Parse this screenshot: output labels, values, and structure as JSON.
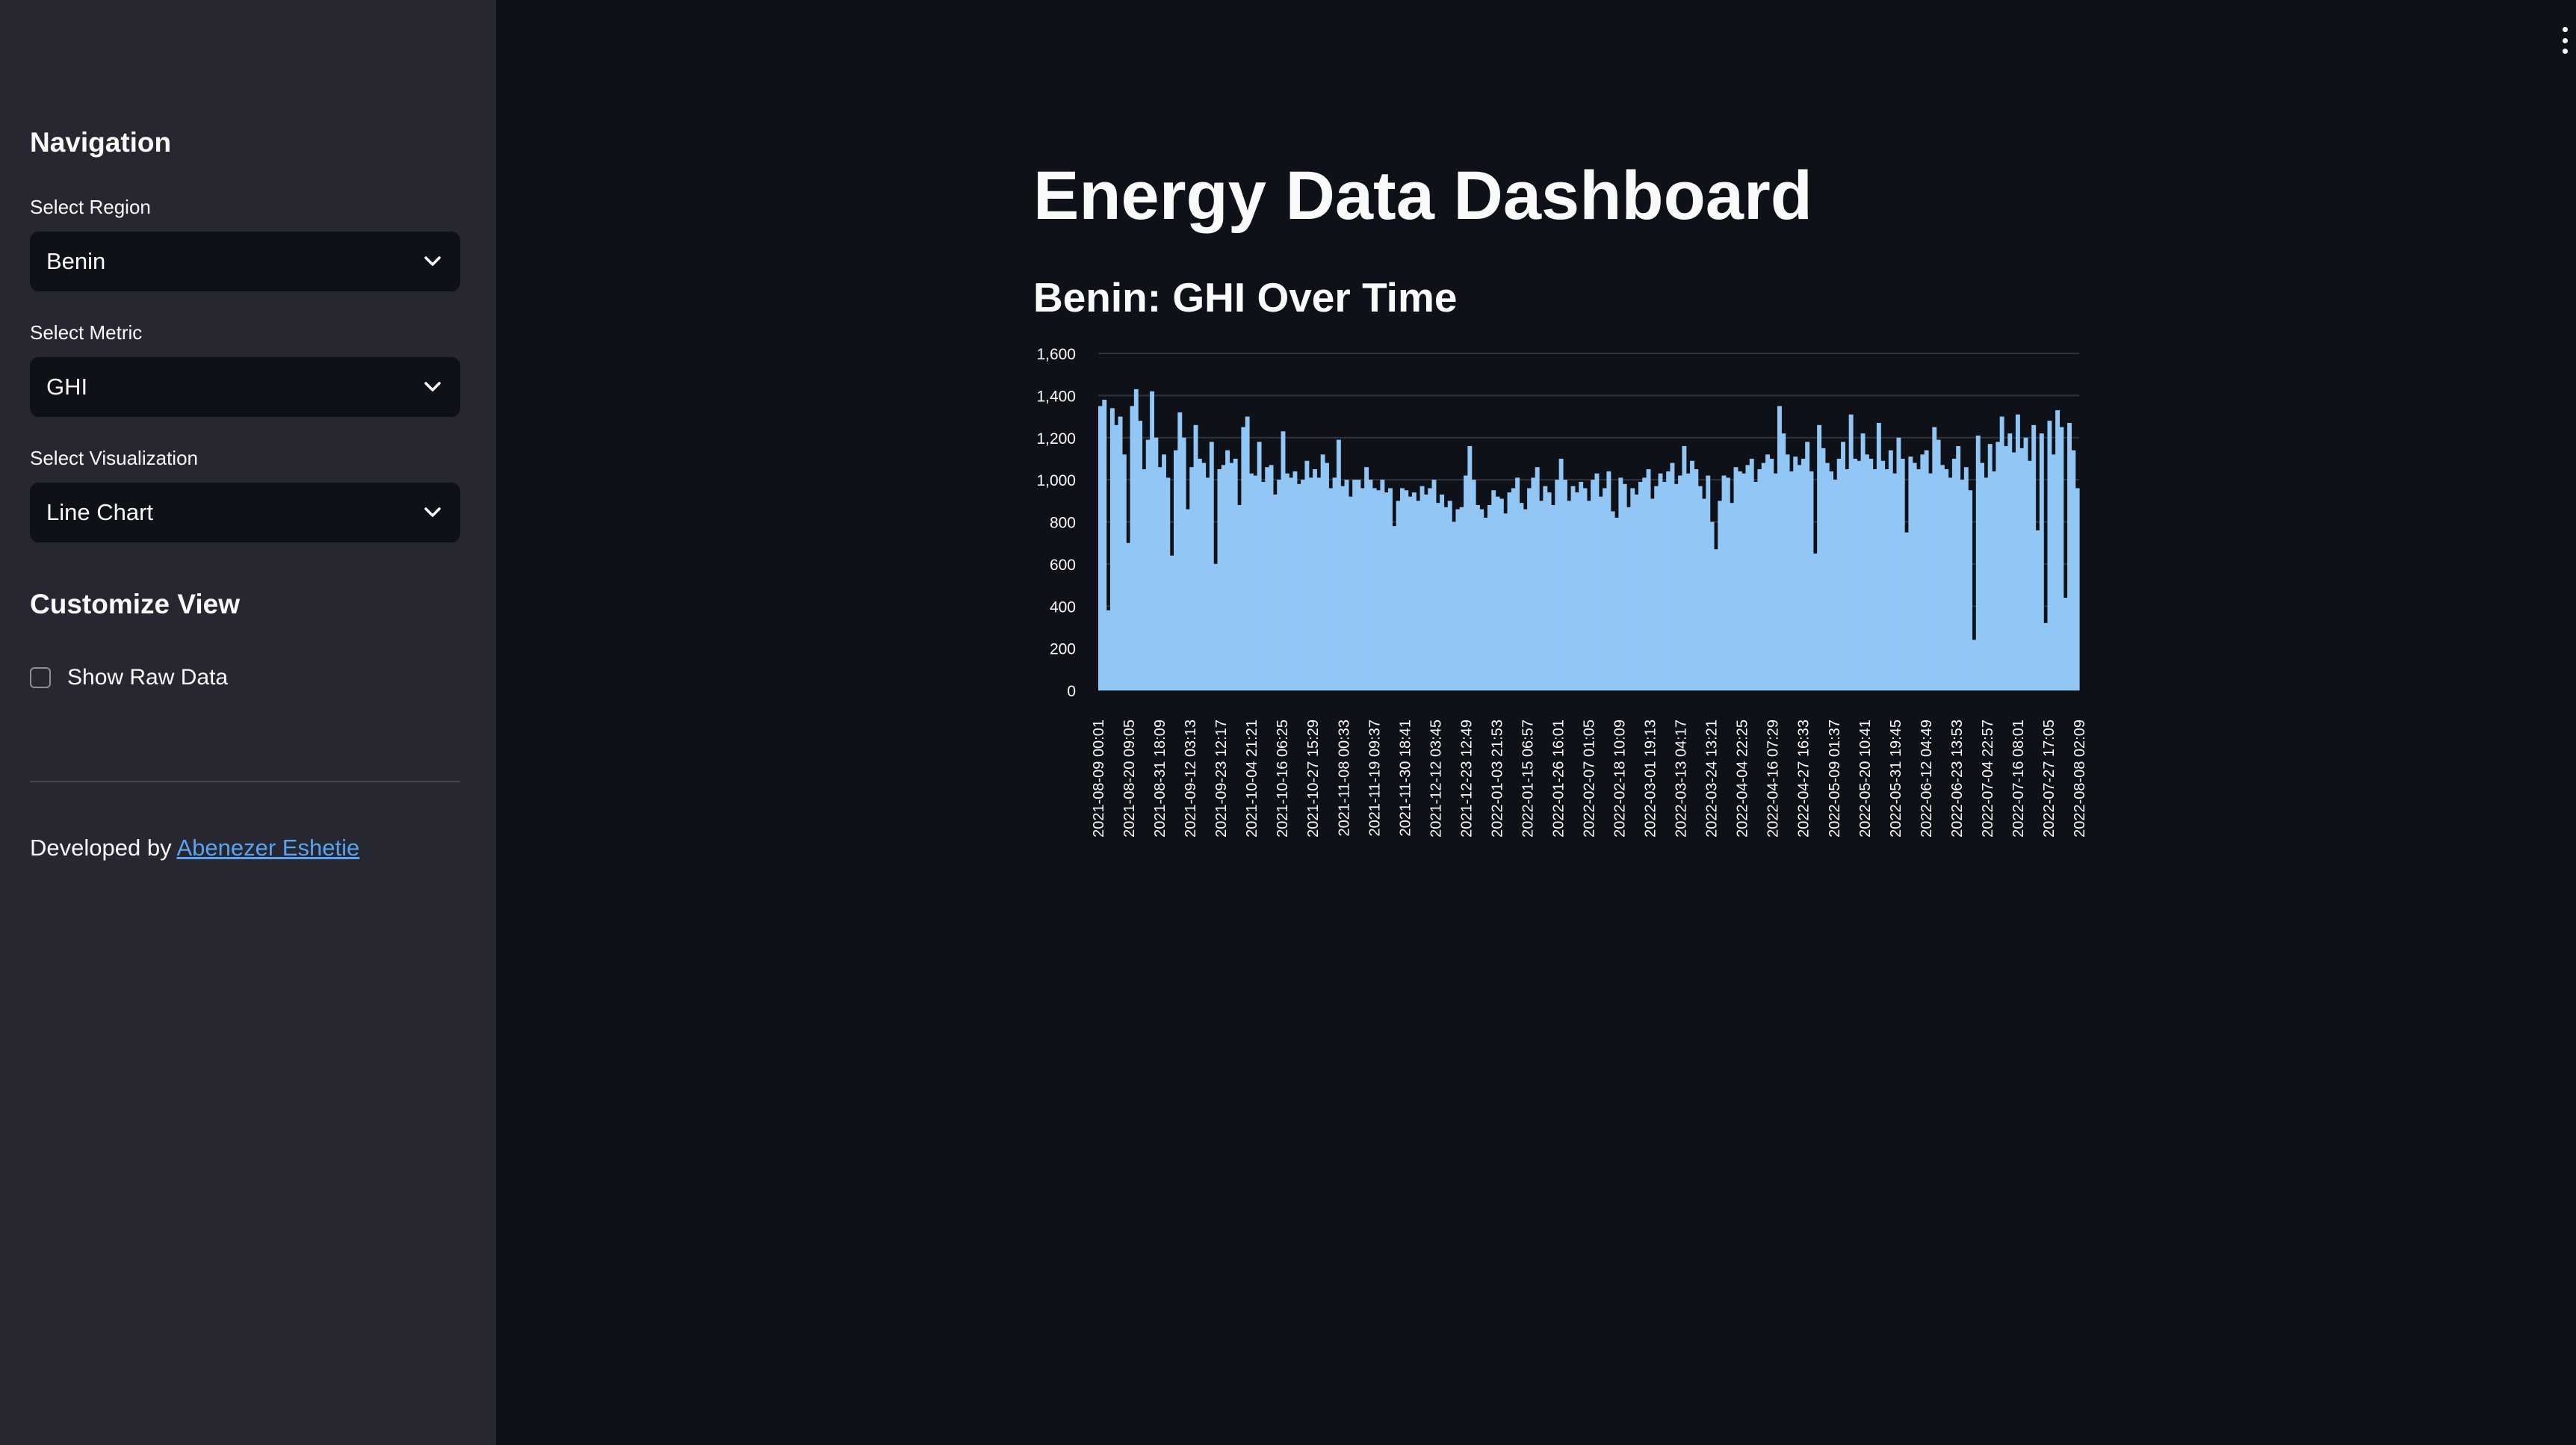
{
  "sidebar": {
    "nav_title": "Navigation",
    "region": {
      "label": "Select Region",
      "value": "Benin"
    },
    "metric": {
      "label": "Select Metric",
      "value": "GHI"
    },
    "visualization": {
      "label": "Select Visualization",
      "value": "Line Chart"
    },
    "customize_title": "Customize View",
    "raw_data_checkbox": {
      "label": "Show Raw Data",
      "checked": false
    },
    "footer": {
      "prefix": "Developed by",
      "link_text": "Abenezer Eshetie"
    },
    "icons": {
      "dropdown": "chevron-down-icon",
      "menu": "vertical-dots-icon"
    }
  },
  "main": {
    "title": "Energy Data Dashboard",
    "chart_title": "Benin: GHI Over Time"
  },
  "colors": {
    "app_background": "#0e1117",
    "sidebar_background": "#262730",
    "bar_fill": "#91c6f5",
    "link": "#5aa3f0"
  },
  "chart_data": {
    "type": "area",
    "title": "Benin: GHI Over Time",
    "xlabel": "",
    "ylabel": "",
    "ylim": [
      0,
      1600
    ],
    "y_ticks": [
      "0",
      "200",
      "400",
      "600",
      "800",
      "1,000",
      "1,200",
      "1,400",
      "1,600"
    ],
    "grid": true,
    "x_tick_labels": [
      "2021-08-09 00:01",
      "2021-08-20 09:05",
      "2021-08-31 18:09",
      "2021-09-12 03:13",
      "2021-09-23 12:17",
      "2021-10-04 21:21",
      "2021-10-16 06:25",
      "2021-10-27 15:29",
      "2021-11-08 00:33",
      "2021-11-19 09:37",
      "2021-11-30 18:41",
      "2021-12-12 03:45",
      "2021-12-23 12:49",
      "2022-01-03 21:53",
      "2022-01-15 06:57",
      "2022-01-26 16:01",
      "2022-02-07 01:05",
      "2022-02-18 10:09",
      "2022-03-01 19:13",
      "2022-03-13 04:17",
      "2022-03-24 13:21",
      "2022-04-04 22:25",
      "2022-04-16 07:29",
      "2022-04-27 16:33",
      "2022-05-09 01:37",
      "2022-05-20 10:41",
      "2022-05-31 19:45",
      "2022-06-12 04:49",
      "2022-06-23 13:53",
      "2022-07-04 22:57",
      "2022-07-16 08:01",
      "2022-07-27 17:05",
      "2022-08-08 02:09"
    ],
    "series": [
      {
        "values": [
          1350,
          1380,
          380,
          1340,
          1260,
          1300,
          1120,
          700,
          1350,
          1430,
          1280,
          1050,
          1190,
          1420,
          1200,
          1060,
          1120,
          1010,
          640,
          1140,
          1320,
          1200,
          860,
          1060,
          1260,
          1100,
          1080,
          1010,
          1180,
          600,
          1050,
          1070,
          1140,
          1080,
          1100,
          880,
          1250,
          1300,
          1030,
          1020,
          1180,
          990,
          1060,
          1070,
          930,
          1000,
          1230,
          1030,
          1010,
          1040,
          980,
          1000,
          1090,
          1010,
          1050,
          1010,
          1120,
          1080,
          960,
          1010,
          1190,
          970,
          1000,
          920,
          1000,
          1000,
          960,
          1060,
          1000,
          960,
          950,
          1000,
          940,
          960,
          780,
          900,
          960,
          950,
          920,
          940,
          900,
          970,
          930,
          960,
          1000,
          890,
          930,
          870,
          900,
          800,
          860,
          870,
          1020,
          1160,
          1000,
          880,
          860,
          820,
          880,
          950,
          920,
          910,
          840,
          940,
          960,
          1010,
          890,
          860,
          960,
          1010,
          1060,
          900,
          970,
          940,
          880,
          1000,
          1100,
          1000,
          900,
          970,
          940,
          990,
          960,
          900,
          1000,
          1030,
          920,
          960,
          1040,
          850,
          820,
          1010,
          980,
          870,
          960,
          930,
          990,
          1010,
          1050,
          910,
          970,
          1030,
          990,
          1040,
          1080,
          980,
          1020,
          1160,
          1030,
          1090,
          1050,
          970,
          910,
          1020,
          800,
          670,
          900,
          1020,
          1010,
          890,
          1060,
          1040,
          1030,
          1070,
          1100,
          990,
          1050,
          1080,
          1120,
          1100,
          1030,
          1350,
          1220,
          1120,
          1040,
          1110,
          1070,
          1100,
          1180,
          1040,
          650,
          1260,
          1150,
          1080,
          1040,
          1000,
          1100,
          1180,
          1050,
          1310,
          1100,
          1090,
          1220,
          1120,
          1100,
          1050,
          1270,
          1090,
          1050,
          1140,
          1030,
          1200,
          1100,
          750,
          1110,
          1080,
          1050,
          1120,
          1140,
          1030,
          1250,
          1190,
          1070,
          1050,
          1010,
          1100,
          1160,
          1000,
          1060,
          950,
          240,
          1210,
          1080,
          1010,
          1170,
          1040,
          1180,
          1300,
          1160,
          1220,
          1130,
          1310,
          1150,
          1200,
          1090,
          1260,
          760,
          1220,
          320,
          1280,
          1120,
          1330,
          1250,
          440,
          1270,
          1140,
          960
        ]
      }
    ]
  }
}
